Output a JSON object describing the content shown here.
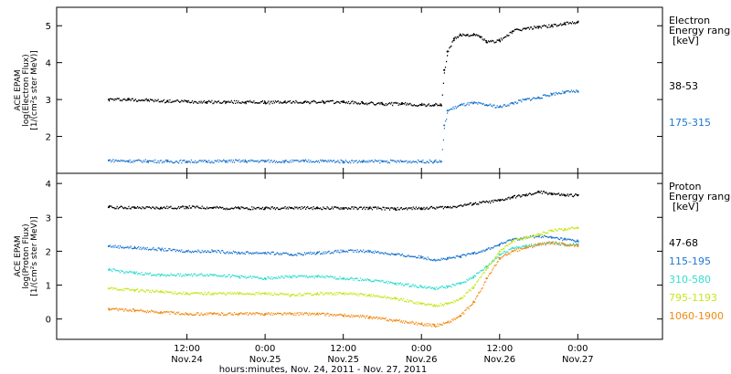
{
  "chart_data": [
    {
      "type": "scatter",
      "panel": "electron",
      "ylabel_lines": [
        "ACE EPAM",
        "log(Electron Flux)",
        "[1/(cm²s ster MeV)]"
      ],
      "ylim": [
        1.0,
        5.5
      ],
      "yticks": [
        2,
        3,
        4,
        5
      ],
      "legend_title": [
        "Electron",
        "Energy ranges",
        "[keV]"
      ],
      "series": [
        {
          "name": "38-53",
          "color": "#000000",
          "x": [
            0,
            3,
            6,
            9,
            12,
            15,
            18,
            21,
            24,
            27,
            30,
            33,
            36,
            39,
            42,
            45,
            48,
            50,
            51,
            51.5,
            52,
            53,
            54,
            55,
            56,
            57,
            58,
            60,
            62,
            64,
            66,
            68,
            70,
            72
          ],
          "y": [
            3.0,
            3.0,
            2.98,
            2.95,
            2.95,
            2.93,
            2.93,
            2.93,
            2.92,
            2.93,
            2.93,
            2.93,
            2.93,
            2.9,
            2.88,
            2.88,
            2.85,
            2.85,
            2.85,
            3.8,
            4.3,
            4.65,
            4.75,
            4.75,
            4.75,
            4.7,
            4.55,
            4.6,
            4.85,
            4.92,
            4.97,
            5.0,
            5.05,
            5.1
          ]
        },
        {
          "name": "175-315",
          "color": "#1f77d0",
          "x": [
            0,
            3,
            6,
            9,
            12,
            15,
            18,
            21,
            24,
            27,
            30,
            33,
            36,
            39,
            42,
            45,
            48,
            50,
            51,
            51.5,
            52,
            54,
            56,
            58,
            60,
            62,
            64,
            66,
            68,
            70,
            72
          ],
          "y": [
            1.35,
            1.33,
            1.33,
            1.32,
            1.32,
            1.32,
            1.33,
            1.33,
            1.33,
            1.32,
            1.33,
            1.33,
            1.32,
            1.32,
            1.32,
            1.32,
            1.32,
            1.32,
            1.32,
            2.3,
            2.7,
            2.85,
            2.9,
            2.85,
            2.8,
            2.9,
            3.0,
            3.05,
            3.15,
            3.2,
            3.22
          ]
        }
      ]
    },
    {
      "type": "scatter",
      "panel": "proton",
      "ylabel_lines": [
        "ACE EPAM",
        "log(Proton Flux)",
        "[1/(cm²s ster MeV)]"
      ],
      "ylim": [
        -0.6,
        4.3
      ],
      "yticks": [
        0,
        1,
        2,
        3,
        4
      ],
      "legend_title": [
        "Proton",
        "Energy ranges",
        "[keV]"
      ],
      "series": [
        {
          "name": "47-68",
          "color": "#000000",
          "x": [
            0,
            4,
            8,
            12,
            16,
            20,
            24,
            28,
            32,
            36,
            40,
            44,
            48,
            52,
            56,
            60,
            62,
            64,
            66,
            68,
            70,
            72
          ],
          "y": [
            3.3,
            3.28,
            3.28,
            3.3,
            3.28,
            3.27,
            3.27,
            3.28,
            3.27,
            3.27,
            3.27,
            3.25,
            3.27,
            3.3,
            3.4,
            3.5,
            3.6,
            3.65,
            3.75,
            3.7,
            3.65,
            3.65
          ]
        },
        {
          "name": "115-195",
          "color": "#1f77d0",
          "x": [
            0,
            4,
            8,
            12,
            16,
            20,
            24,
            28,
            32,
            36,
            40,
            44,
            48,
            50,
            52,
            54,
            56,
            58,
            60,
            62,
            64,
            66,
            68,
            70,
            72
          ],
          "y": [
            2.15,
            2.1,
            2.05,
            2.0,
            2.0,
            1.95,
            1.95,
            1.9,
            1.95,
            2.0,
            2.0,
            1.9,
            1.82,
            1.75,
            1.78,
            1.85,
            1.95,
            2.05,
            2.2,
            2.35,
            2.4,
            2.45,
            2.4,
            2.35,
            2.3
          ]
        },
        {
          "name": "310-580",
          "color": "#33ddd0",
          "x": [
            0,
            4,
            8,
            12,
            16,
            20,
            24,
            28,
            32,
            36,
            40,
            44,
            48,
            50,
            52,
            54,
            56,
            58,
            60,
            62,
            64,
            66,
            68,
            70,
            72
          ],
          "y": [
            1.45,
            1.35,
            1.3,
            1.3,
            1.3,
            1.25,
            1.2,
            1.25,
            1.25,
            1.2,
            1.15,
            1.05,
            0.95,
            0.9,
            0.95,
            1.05,
            1.25,
            1.55,
            1.9,
            2.1,
            2.15,
            2.2,
            2.25,
            2.2,
            2.2
          ]
        },
        {
          "name": "795-1193",
          "color": "#c8e61e",
          "x": [
            0,
            4,
            8,
            12,
            16,
            20,
            24,
            28,
            32,
            36,
            40,
            44,
            48,
            50,
            52,
            54,
            56,
            58,
            60,
            62,
            64,
            66,
            68,
            70,
            72
          ],
          "y": [
            0.9,
            0.85,
            0.8,
            0.75,
            0.75,
            0.75,
            0.75,
            0.7,
            0.75,
            0.75,
            0.7,
            0.6,
            0.45,
            0.4,
            0.45,
            0.6,
            0.95,
            1.5,
            2.0,
            2.3,
            2.4,
            2.5,
            2.6,
            2.65,
            2.7
          ]
        },
        {
          "name": "1060-1900",
          "color": "#f08a10",
          "x": [
            0,
            4,
            8,
            12,
            16,
            20,
            24,
            28,
            32,
            36,
            40,
            44,
            48,
            50,
            52,
            54,
            56,
            58,
            60,
            62,
            64,
            66,
            68,
            70,
            72
          ],
          "y": [
            0.3,
            0.25,
            0.2,
            0.15,
            0.15,
            0.15,
            0.15,
            0.15,
            0.15,
            0.1,
            0.05,
            -0.05,
            -0.15,
            -0.2,
            -0.1,
            0.1,
            0.5,
            1.2,
            1.8,
            2.0,
            2.1,
            2.2,
            2.25,
            2.2,
            2.15
          ]
        }
      ]
    }
  ],
  "x_axis": {
    "xlim": [
      -8,
      85
    ],
    "ticks": [
      {
        "x": 12,
        "line1": "12:00",
        "line2": "Nov.24"
      },
      {
        "x": 24,
        "line1": "0:00",
        "line2": "Nov.25"
      },
      {
        "x": 36,
        "line1": "12:00",
        "line2": "Nov.25"
      },
      {
        "x": 48,
        "line1": "0:00",
        "line2": "Nov.26"
      },
      {
        "x": 60,
        "line1": "12:00",
        "line2": "Nov.26"
      },
      {
        "x": 72,
        "line1": "0:00",
        "line2": "Nov.27"
      }
    ],
    "xlabel": "hours:minutes, Nov. 24, 2011 - Nov. 27, 2011"
  }
}
